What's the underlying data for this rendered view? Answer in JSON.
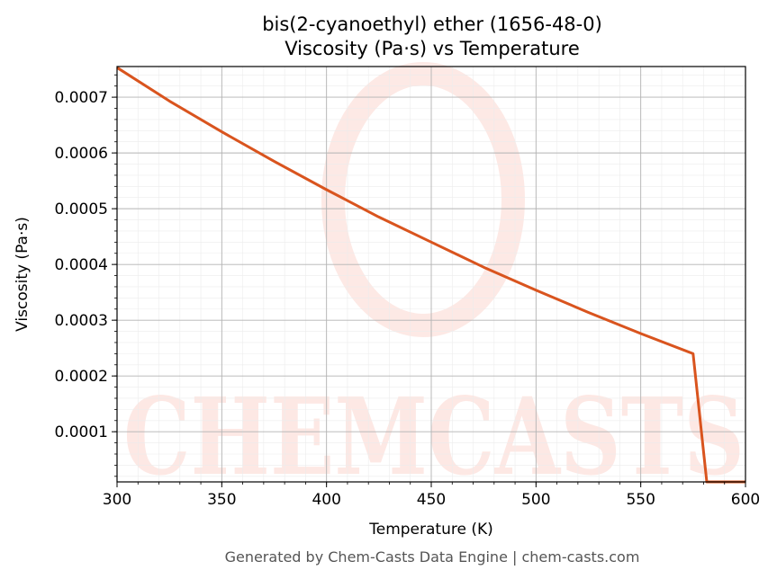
{
  "chart_data": {
    "type": "line",
    "title": "bis(2-cyanoethyl) ether (1656-48-0)",
    "subtitle": "Viscosity (Pa·s) vs Temperature",
    "xlabel": "Temperature (K)",
    "ylabel": "Viscosity (Pa·s)",
    "xlim": [
      300,
      600
    ],
    "ylim": [
      1e-05,
      0.000755
    ],
    "xticks": [
      "300",
      "350",
      "400",
      "450",
      "500",
      "550",
      "600"
    ],
    "yticks": [
      "0.0001",
      "0.0002",
      "0.0003",
      "0.0004",
      "0.0005",
      "0.0006",
      "0.0007"
    ],
    "grid": true,
    "series": [
      {
        "color": "#d9541e",
        "x": [
          300,
          325,
          350,
          375,
          400,
          425,
          450,
          475,
          500,
          525,
          550,
          575,
          581.5,
          600
        ],
        "y": [
          0.000753,
          0.000693,
          0.000638,
          0.000585,
          0.000534,
          0.000485,
          0.00044,
          0.000395,
          0.000354,
          0.000314,
          0.000276,
          0.00024,
          1e-05,
          1e-05
        ]
      }
    ],
    "watermark": "CHEMCASTS",
    "footer": "Generated by Chem-Casts Data Engine | chem-casts.com"
  }
}
